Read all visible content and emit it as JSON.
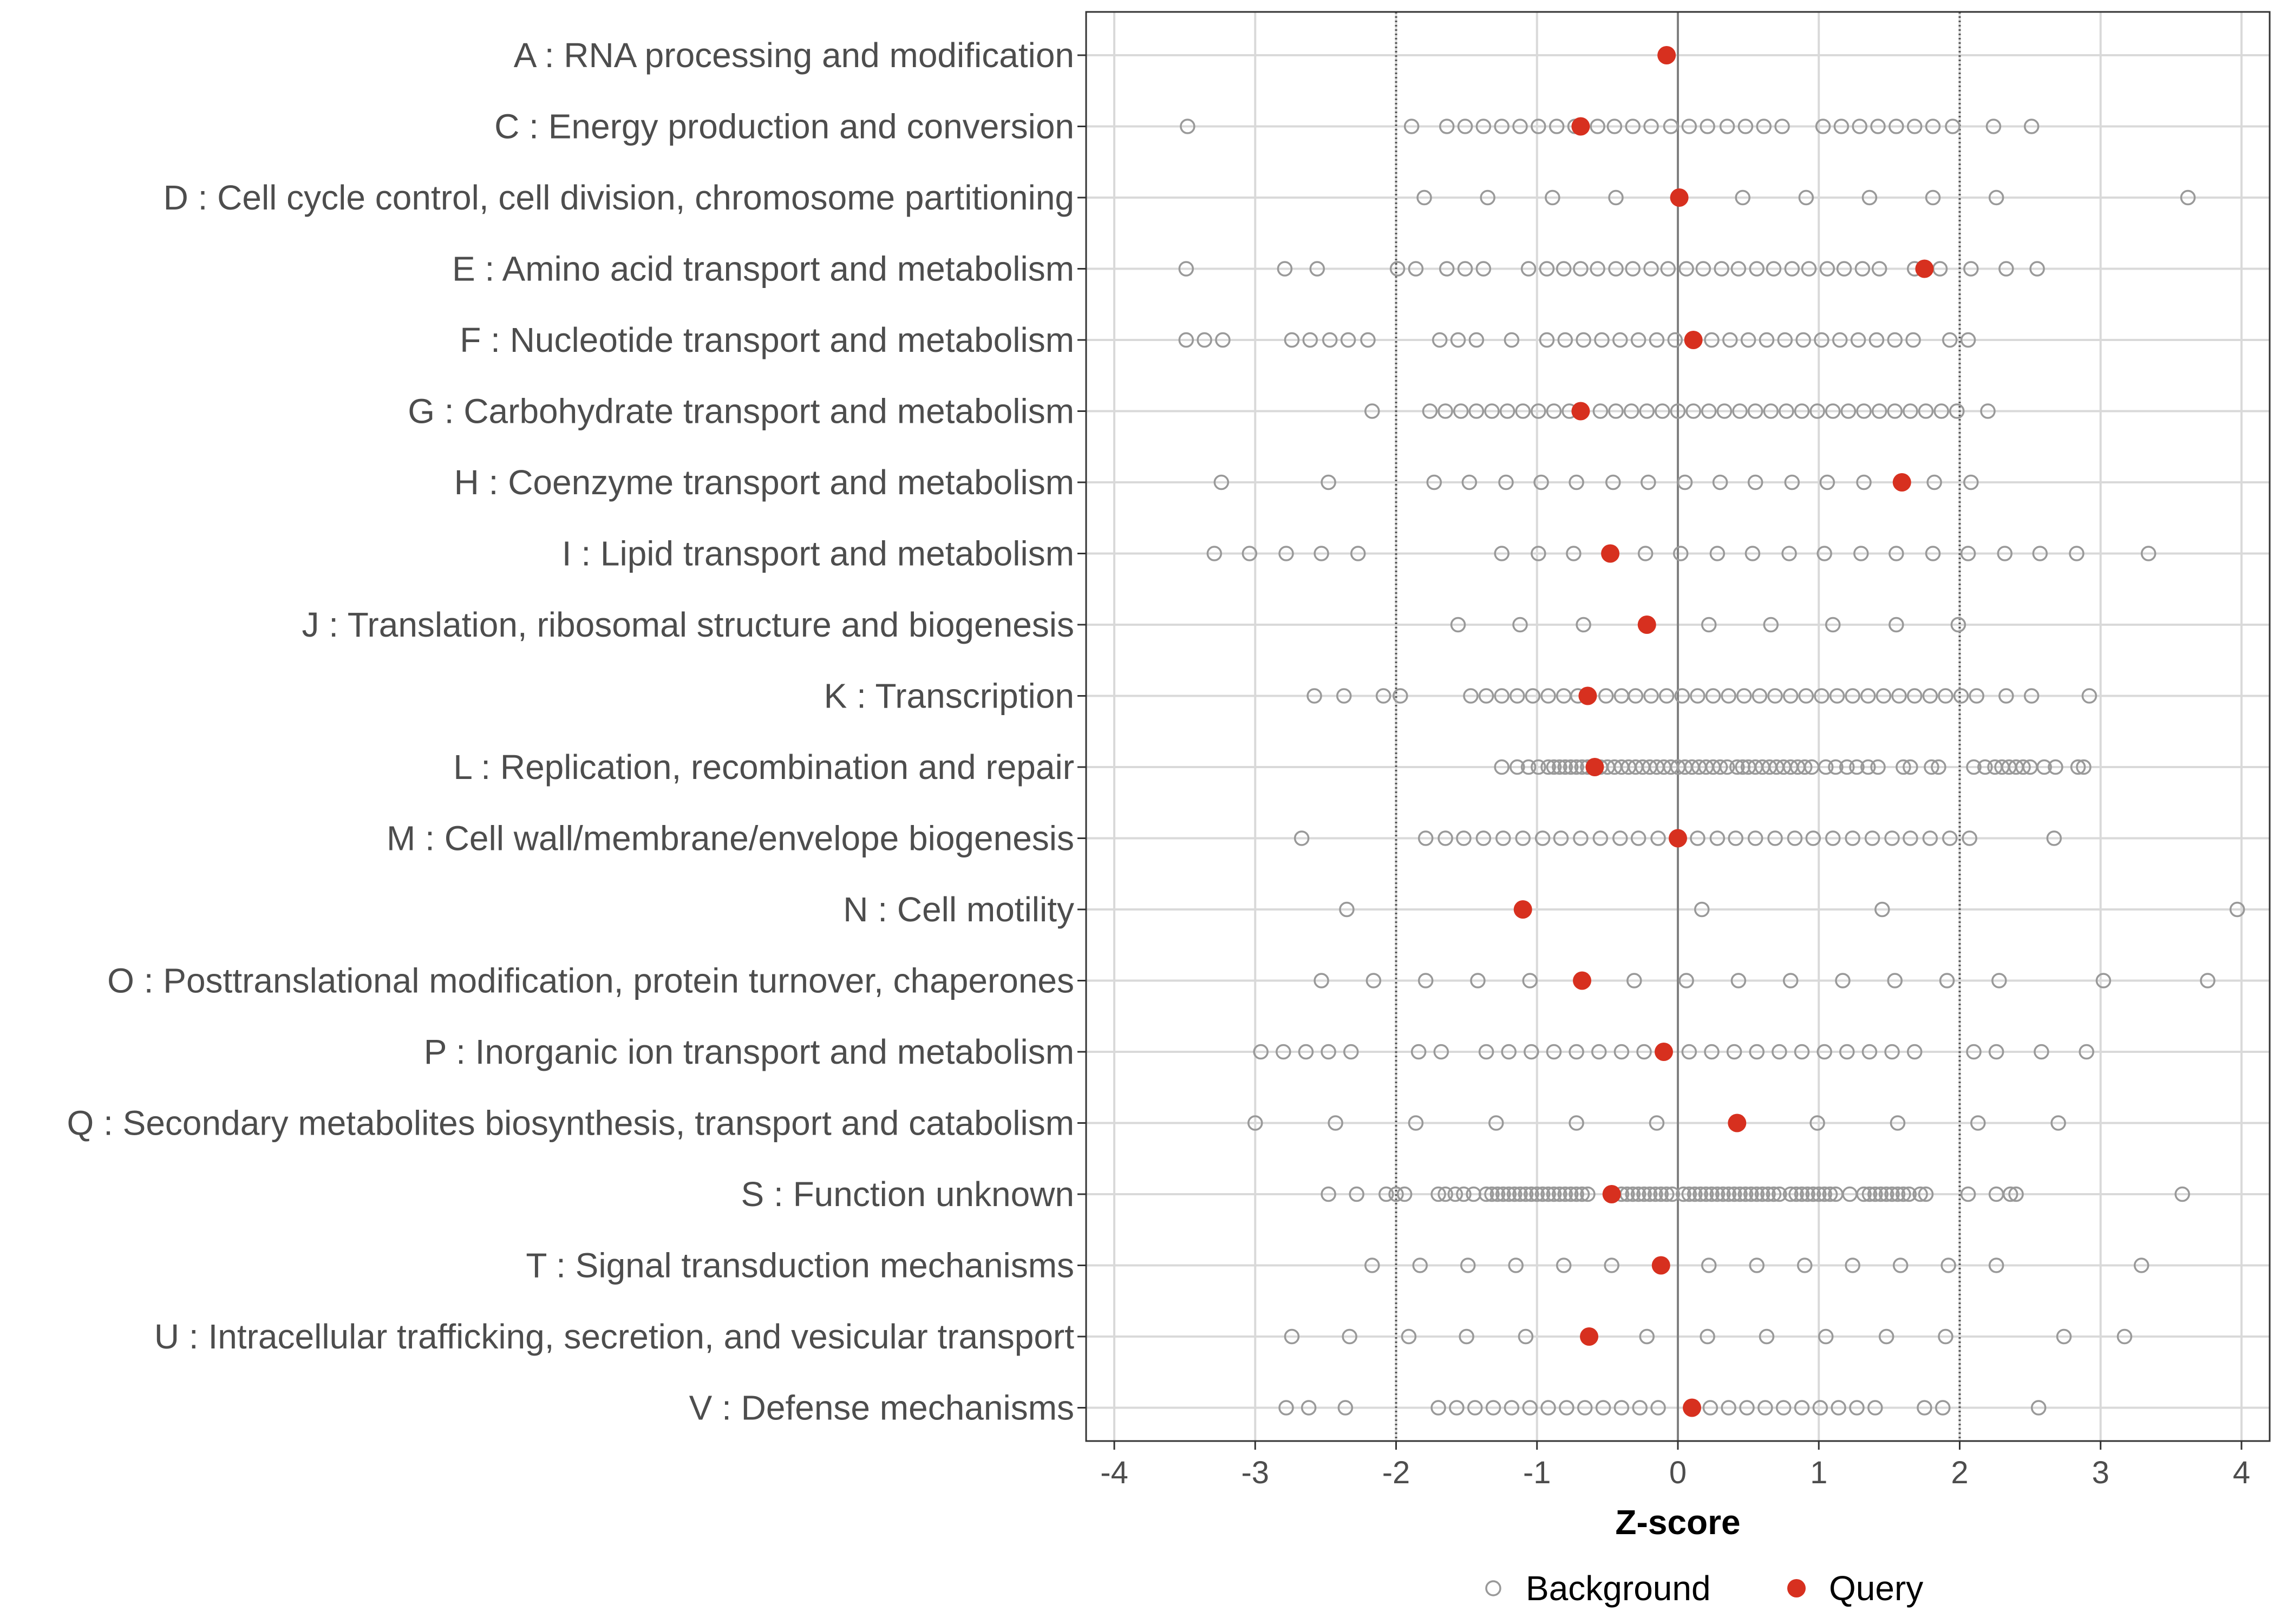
{
  "chart_data": {
    "type": "scatter",
    "xlabel": "Z-score",
    "xlim": [
      -4.2,
      4.2
    ],
    "xticks": [
      -4,
      -3,
      -2,
      -1,
      0,
      1,
      2,
      3,
      4
    ],
    "x_tick_labels": [
      "-4",
      "-3",
      "-2",
      "-1",
      "0",
      "1",
      "2",
      "3",
      "4"
    ],
    "reference_lines": {
      "solid": [
        0
      ],
      "dotted": [
        -2,
        2
      ]
    },
    "grid": true,
    "legend": {
      "position": "bottom",
      "entries": [
        {
          "key": "background",
          "label": "Background"
        },
        {
          "key": "query",
          "label": "Query"
        }
      ]
    },
    "colors": {
      "background": "#999999",
      "query": "#d7301f",
      "grid": "#d9d9d9",
      "zero_line": "#808080"
    },
    "categories": [
      {
        "label": "A : RNA processing and modification",
        "query": -0.08,
        "background": []
      },
      {
        "label": "C : Energy production and conversion",
        "query": -0.69,
        "background": [
          -3.48,
          -1.89,
          -1.64,
          -1.51,
          -1.38,
          -1.25,
          -1.12,
          -0.99,
          -0.86,
          -0.73,
          -0.57,
          -0.45,
          -0.32,
          -0.19,
          -0.05,
          0.08,
          0.21,
          0.35,
          0.48,
          0.61,
          0.74,
          1.03,
          1.16,
          1.29,
          1.42,
          1.55,
          1.68,
          1.81,
          1.95,
          2.24,
          2.51
        ]
      },
      {
        "label": "D : Cell cycle control, cell division, chromosome partitioning",
        "query": 0.01,
        "background": [
          -1.8,
          -1.35,
          -0.89,
          -0.44,
          0.46,
          0.91,
          1.36,
          1.81,
          2.26,
          3.62
        ]
      },
      {
        "label": "E : Amino acid transport and metabolism",
        "query": 1.75,
        "background": [
          -3.49,
          -2.79,
          -2.56,
          -1.99,
          -1.86,
          -1.64,
          -1.51,
          -1.38,
          -1.06,
          -0.93,
          -0.81,
          -0.69,
          -0.57,
          -0.44,
          -0.32,
          -0.19,
          -0.07,
          0.06,
          0.18,
          0.31,
          0.43,
          0.56,
          0.68,
          0.81,
          0.93,
          1.06,
          1.18,
          1.31,
          1.43,
          1.68,
          1.86,
          2.08,
          2.33,
          2.55
        ]
      },
      {
        "label": "F : Nucleotide transport and metabolism",
        "query": 0.11,
        "background": [
          -3.49,
          -3.36,
          -3.23,
          -2.74,
          -2.61,
          -2.47,
          -2.34,
          -2.2,
          -1.69,
          -1.56,
          -1.43,
          -1.18,
          -0.93,
          -0.8,
          -0.67,
          -0.54,
          -0.41,
          -0.28,
          -0.15,
          -0.02,
          0.24,
          0.37,
          0.5,
          0.63,
          0.76,
          0.89,
          1.02,
          1.15,
          1.28,
          1.41,
          1.54,
          1.67,
          1.93,
          2.06
        ]
      },
      {
        "label": "G : Carbohydrate transport and metabolism",
        "query": -0.69,
        "background": [
          -2.17,
          -1.76,
          -1.65,
          -1.54,
          -1.43,
          -1.32,
          -1.21,
          -1.1,
          -0.99,
          -0.88,
          -0.77,
          -0.55,
          -0.44,
          -0.33,
          -0.22,
          -0.11,
          0.0,
          0.11,
          0.22,
          0.33,
          0.44,
          0.55,
          0.66,
          0.77,
          0.88,
          0.99,
          1.1,
          1.21,
          1.32,
          1.43,
          1.54,
          1.65,
          1.76,
          1.87,
          1.98,
          2.2
        ]
      },
      {
        "label": "H : Coenzyme transport and metabolism",
        "query": 1.59,
        "background": [
          -3.24,
          -2.48,
          -1.73,
          -1.48,
          -1.22,
          -0.97,
          -0.72,
          -0.46,
          -0.21,
          0.05,
          0.3,
          0.55,
          0.81,
          1.06,
          1.32,
          1.82,
          2.08
        ]
      },
      {
        "label": "I : Lipid transport and metabolism",
        "query": -0.48,
        "background": [
          -3.29,
          -3.04,
          -2.78,
          -2.53,
          -2.27,
          -1.25,
          -0.99,
          -0.74,
          -0.23,
          0.02,
          0.28,
          0.53,
          0.79,
          1.04,
          1.3,
          1.55,
          1.81,
          2.06,
          2.32,
          2.57,
          2.83,
          3.34
        ]
      },
      {
        "label": "J : Translation, ribosomal structure and biogenesis",
        "query": -0.22,
        "background": [
          -1.56,
          -1.12,
          -0.67,
          0.22,
          0.66,
          1.1,
          1.55,
          1.99
        ]
      },
      {
        "label": "K : Transcription",
        "query": -0.64,
        "background": [
          -2.58,
          -2.37,
          -2.09,
          -1.97,
          -1.47,
          -1.36,
          -1.25,
          -1.14,
          -1.03,
          -0.92,
          -0.81,
          -0.71,
          -0.51,
          -0.4,
          -0.3,
          -0.19,
          -0.08,
          0.03,
          0.14,
          0.25,
          0.36,
          0.47,
          0.58,
          0.69,
          0.8,
          0.91,
          1.02,
          1.13,
          1.24,
          1.35,
          1.46,
          1.57,
          1.68,
          1.79,
          1.9,
          2.01,
          2.12,
          2.33,
          2.51,
          2.92
        ]
      },
      {
        "label": "L : Replication, recombination and repair",
        "query": -0.59,
        "background": [
          -1.25,
          -1.14,
          -1.06,
          -0.99,
          -0.92,
          -0.88,
          -0.84,
          -0.8,
          -0.76,
          -0.72,
          -0.68,
          -0.64,
          -0.55,
          -0.5,
          -0.45,
          -0.4,
          -0.35,
          -0.3,
          -0.25,
          -0.2,
          -0.15,
          -0.1,
          -0.05,
          0.0,
          0.05,
          0.1,
          0.15,
          0.2,
          0.25,
          0.3,
          0.35,
          0.42,
          0.46,
          0.5,
          0.55,
          0.6,
          0.65,
          0.7,
          0.75,
          0.8,
          0.85,
          0.9,
          0.95,
          1.05,
          1.12,
          1.2,
          1.27,
          1.35,
          1.42,
          1.6,
          1.65,
          1.8,
          1.85,
          2.1,
          2.18,
          2.25,
          2.3,
          2.35,
          2.4,
          2.45,
          2.5,
          2.6,
          2.68,
          2.84,
          2.88
        ]
      },
      {
        "label": "M : Cell wall/membrane/envelope biogenesis",
        "query": 0.0,
        "background": [
          -2.67,
          -1.79,
          -1.65,
          -1.52,
          -1.38,
          -1.24,
          -1.1,
          -0.96,
          -0.83,
          -0.69,
          -0.55,
          -0.41,
          -0.28,
          -0.14,
          0.14,
          0.28,
          0.41,
          0.55,
          0.69,
          0.83,
          0.96,
          1.1,
          1.24,
          1.38,
          1.52,
          1.65,
          1.79,
          1.93,
          2.07,
          2.67
        ]
      },
      {
        "label": "N : Cell motility",
        "query": -1.1,
        "background": [
          -2.35,
          0.17,
          1.45,
          3.97
        ]
      },
      {
        "label": "O : Posttranslational modification, protein turnover, chaperones",
        "query": -0.68,
        "background": [
          -2.53,
          -2.16,
          -1.79,
          -1.42,
          -1.05,
          -0.31,
          0.06,
          0.43,
          0.8,
          1.17,
          1.54,
          1.91,
          2.28,
          3.02,
          3.76
        ]
      },
      {
        "label": "P : Inorganic ion transport and metabolism",
        "query": -0.1,
        "background": [
          -2.96,
          -2.8,
          -2.64,
          -2.48,
          -2.32,
          -1.84,
          -1.68,
          -1.36,
          -1.2,
          -1.04,
          -0.88,
          -0.72,
          -0.56,
          -0.4,
          -0.24,
          0.08,
          0.24,
          0.4,
          0.56,
          0.72,
          0.88,
          1.04,
          1.2,
          1.36,
          1.52,
          1.68,
          2.1,
          2.26,
          2.58,
          2.9
        ]
      },
      {
        "label": "Q : Secondary metabolites biosynthesis, transport and catabolism",
        "query": 0.42,
        "background": [
          -3.0,
          -2.43,
          -1.86,
          -1.29,
          -0.72,
          -0.15,
          0.99,
          1.56,
          2.13,
          2.7
        ]
      },
      {
        "label": "S : Function unknown",
        "query": -0.47,
        "background": [
          -2.48,
          -2.28,
          -2.07,
          -2.0,
          -1.94,
          -1.7,
          -1.65,
          -1.58,
          -1.52,
          -1.45,
          -1.36,
          -1.32,
          -1.28,
          -1.24,
          -1.2,
          -1.16,
          -1.12,
          -1.08,
          -1.04,
          -1.0,
          -0.96,
          -0.92,
          -0.88,
          -0.84,
          -0.8,
          -0.76,
          -0.72,
          -0.68,
          -0.64,
          -0.4,
          -0.36,
          -0.32,
          -0.28,
          -0.24,
          -0.2,
          -0.16,
          -0.12,
          -0.08,
          -0.04,
          0.04,
          0.08,
          0.12,
          0.16,
          0.2,
          0.24,
          0.28,
          0.32,
          0.36,
          0.4,
          0.44,
          0.48,
          0.52,
          0.56,
          0.6,
          0.64,
          0.68,
          0.72,
          0.8,
          0.84,
          0.88,
          0.92,
          0.96,
          1.0,
          1.04,
          1.08,
          1.12,
          1.22,
          1.32,
          1.36,
          1.4,
          1.44,
          1.48,
          1.52,
          1.56,
          1.6,
          1.64,
          1.72,
          1.76,
          2.06,
          2.26,
          2.36,
          2.4,
          3.58
        ]
      },
      {
        "label": "T : Signal transduction mechanisms",
        "query": -0.12,
        "background": [
          -2.17,
          -1.83,
          -1.49,
          -1.15,
          -0.81,
          -0.47,
          0.22,
          0.56,
          0.9,
          1.24,
          1.58,
          1.92,
          2.26,
          3.29
        ]
      },
      {
        "label": "U : Intracellular trafficking, secretion, and vesicular transport",
        "query": -0.63,
        "background": [
          -2.74,
          -2.33,
          -1.91,
          -1.5,
          -1.08,
          -0.22,
          0.21,
          0.63,
          1.05,
          1.48,
          1.9,
          2.74,
          3.17
        ]
      },
      {
        "label": "V : Defense mechanisms",
        "query": 0.1,
        "background": [
          -2.78,
          -2.62,
          -2.36,
          -1.7,
          -1.57,
          -1.44,
          -1.31,
          -1.18,
          -1.05,
          -0.92,
          -0.79,
          -0.66,
          -0.53,
          -0.4,
          -0.27,
          -0.14,
          0.23,
          0.36,
          0.49,
          0.62,
          0.75,
          0.88,
          1.01,
          1.14,
          1.27,
          1.4,
          1.75,
          1.88,
          2.56
        ]
      }
    ]
  }
}
